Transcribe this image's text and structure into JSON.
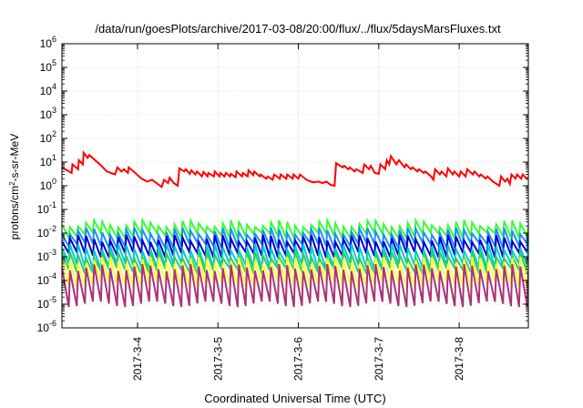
{
  "chart_data": {
    "type": "line",
    "title": "/data/run/goesPlots/archive/2017-03-08/20:00/flux/../flux/5daysMarsFluxes.txt",
    "xlabel": "Coordinated Universal Time (UTC)",
    "ylabel_parts": [
      "protons/cm",
      "2",
      "-s-sr-MeV"
    ],
    "y_scale": "log",
    "ylim_exp": [
      -6,
      6
    ],
    "y_tick_exponents": [
      -6,
      -5,
      -4,
      -3,
      -2,
      -1,
      0,
      1,
      2,
      3,
      4,
      5,
      6
    ],
    "y_tick_base": "10",
    "xlim_days": [
      3.06,
      8.86
    ],
    "x_ticks": [
      {
        "day": 4,
        "label": "2017-3-4"
      },
      {
        "day": 5,
        "label": "2017-3-5"
      },
      {
        "day": 6,
        "label": "2017-3-6"
      },
      {
        "day": 7,
        "label": "2017-3-7"
      },
      {
        "day": 8,
        "label": "2017-3-8"
      }
    ],
    "grid": true,
    "legend": "none",
    "series": [
      {
        "color": "#ff0000",
        "points": [
          [
            3.06,
            6
          ],
          [
            3.18,
            3.5
          ],
          [
            3.19,
            8
          ],
          [
            3.26,
            5
          ],
          [
            3.27,
            12
          ],
          [
            3.32,
            8
          ],
          [
            3.33,
            25
          ],
          [
            3.38,
            15
          ],
          [
            3.4,
            20
          ],
          [
            3.55,
            7
          ],
          [
            3.62,
            4
          ],
          [
            3.72,
            3
          ],
          [
            3.75,
            6
          ],
          [
            3.8,
            4
          ],
          [
            3.83,
            5
          ],
          [
            3.88,
            3.5
          ],
          [
            3.89,
            6
          ],
          [
            3.95,
            4
          ],
          [
            4.05,
            2
          ],
          [
            4.12,
            1.5
          ],
          [
            4.18,
            1.8
          ],
          [
            4.25,
            1.2
          ],
          [
            4.3,
            0.9
          ],
          [
            4.33,
            1.8
          ],
          [
            4.38,
            1.3
          ],
          [
            4.4,
            2.2
          ],
          [
            4.45,
            1.3
          ],
          [
            4.5,
            1.0
          ],
          [
            4.52,
            5.5
          ],
          [
            4.58,
            4
          ],
          [
            4.6,
            5
          ],
          [
            4.65,
            3.2
          ],
          [
            4.67,
            4.5
          ],
          [
            4.72,
            3
          ],
          [
            4.74,
            4
          ],
          [
            4.8,
            2.5
          ],
          [
            4.82,
            3.8
          ],
          [
            4.87,
            2.5
          ],
          [
            4.88,
            3.5
          ],
          [
            4.95,
            2.5
          ],
          [
            4.96,
            4
          ],
          [
            5.02,
            2.5
          ],
          [
            5.03,
            3.5
          ],
          [
            5.08,
            2.5
          ],
          [
            5.1,
            3.5
          ],
          [
            5.15,
            2.5
          ],
          [
            5.16,
            3.2
          ],
          [
            5.22,
            2.3
          ],
          [
            5.23,
            4
          ],
          [
            5.3,
            2.5
          ],
          [
            5.31,
            3.5
          ],
          [
            5.37,
            2.5
          ],
          [
            5.38,
            4.5
          ],
          [
            5.44,
            2.8
          ],
          [
            5.45,
            4
          ],
          [
            5.52,
            2.5
          ],
          [
            5.53,
            3
          ],
          [
            5.6,
            2
          ],
          [
            5.62,
            2.5
          ],
          [
            5.68,
            1.8
          ],
          [
            5.7,
            3
          ],
          [
            5.77,
            2
          ],
          [
            5.78,
            3
          ],
          [
            5.85,
            2
          ],
          [
            5.86,
            3
          ],
          [
            5.93,
            2
          ],
          [
            5.94,
            3
          ],
          [
            6.0,
            2
          ],
          [
            6.02,
            3
          ],
          [
            6.1,
            1.8
          ],
          [
            6.18,
            1.4
          ],
          [
            6.25,
            1.5
          ],
          [
            6.3,
            1.3
          ],
          [
            6.35,
            1.5
          ],
          [
            6.4,
            1.1
          ],
          [
            6.45,
            1.0
          ],
          [
            6.47,
            9
          ],
          [
            6.55,
            6
          ],
          [
            6.57,
            7
          ],
          [
            6.62,
            5
          ],
          [
            6.64,
            6
          ],
          [
            6.7,
            4
          ],
          [
            6.72,
            5
          ],
          [
            6.8,
            3.5
          ],
          [
            6.82,
            8
          ],
          [
            6.88,
            5
          ],
          [
            6.9,
            7
          ],
          [
            6.95,
            3.5
          ],
          [
            7.0,
            3.2
          ],
          [
            7.02,
            8
          ],
          [
            7.08,
            5
          ],
          [
            7.1,
            12
          ],
          [
            7.13,
            8
          ],
          [
            7.15,
            18
          ],
          [
            7.22,
            8
          ],
          [
            7.25,
            12
          ],
          [
            7.32,
            6
          ],
          [
            7.34,
            8
          ],
          [
            7.4,
            5
          ],
          [
            7.42,
            6
          ],
          [
            7.48,
            4
          ],
          [
            7.5,
            5
          ],
          [
            7.56,
            3.5
          ],
          [
            7.58,
            4
          ],
          [
            7.65,
            2.5
          ],
          [
            7.68,
            1.8
          ],
          [
            7.7,
            5
          ],
          [
            7.76,
            3
          ],
          [
            7.78,
            4
          ],
          [
            7.84,
            2.5
          ],
          [
            7.86,
            5.5
          ],
          [
            7.92,
            3
          ],
          [
            7.94,
            4
          ],
          [
            8.0,
            2.5
          ],
          [
            8.02,
            4
          ],
          [
            8.08,
            2.5
          ],
          [
            8.1,
            5
          ],
          [
            8.17,
            3
          ],
          [
            8.19,
            4
          ],
          [
            8.25,
            2.5
          ],
          [
            8.27,
            3
          ],
          [
            8.33,
            2
          ],
          [
            8.35,
            2.5
          ],
          [
            8.42,
            1.5
          ],
          [
            8.5,
            1.0
          ],
          [
            8.52,
            2.5
          ],
          [
            8.57,
            1.5
          ],
          [
            8.6,
            2
          ],
          [
            8.63,
            1.2
          ],
          [
            8.65,
            3
          ],
          [
            8.7,
            2
          ],
          [
            8.72,
            3
          ],
          [
            8.77,
            2
          ],
          [
            8.79,
            3
          ],
          [
            8.84,
            2
          ],
          [
            8.86,
            2.2
          ]
        ]
      },
      {
        "color": "#33ff33",
        "sawtooth": {
          "period": 0.1,
          "peak": 0.025,
          "trough": 0.008
        }
      },
      {
        "color": "#1c8fff",
        "sawtooth": {
          "period": 0.1,
          "peak": 0.012,
          "trough": 0.003
        }
      },
      {
        "color": "#0000cc",
        "sawtooth": {
          "period": 0.1,
          "peak": 0.006,
          "trough": 0.0012
        }
      },
      {
        "color": "#00cccc",
        "sawtooth": {
          "period": 0.1,
          "peak": 0.0025,
          "trough": 0.0004
        }
      },
      {
        "color": "#33cc66",
        "sawtooth": {
          "period": 0.1,
          "peak": 0.0012,
          "trough": 0.00025
        }
      },
      {
        "color": "#ffff33",
        "sawtooth": {
          "period": 0.1,
          "peak": 0.0007,
          "trough": 7e-05
        }
      },
      {
        "color": "#aa3377",
        "sawtooth": {
          "period": 0.1,
          "peak": 0.00035,
          "trough": 1e-05
        }
      }
    ]
  }
}
